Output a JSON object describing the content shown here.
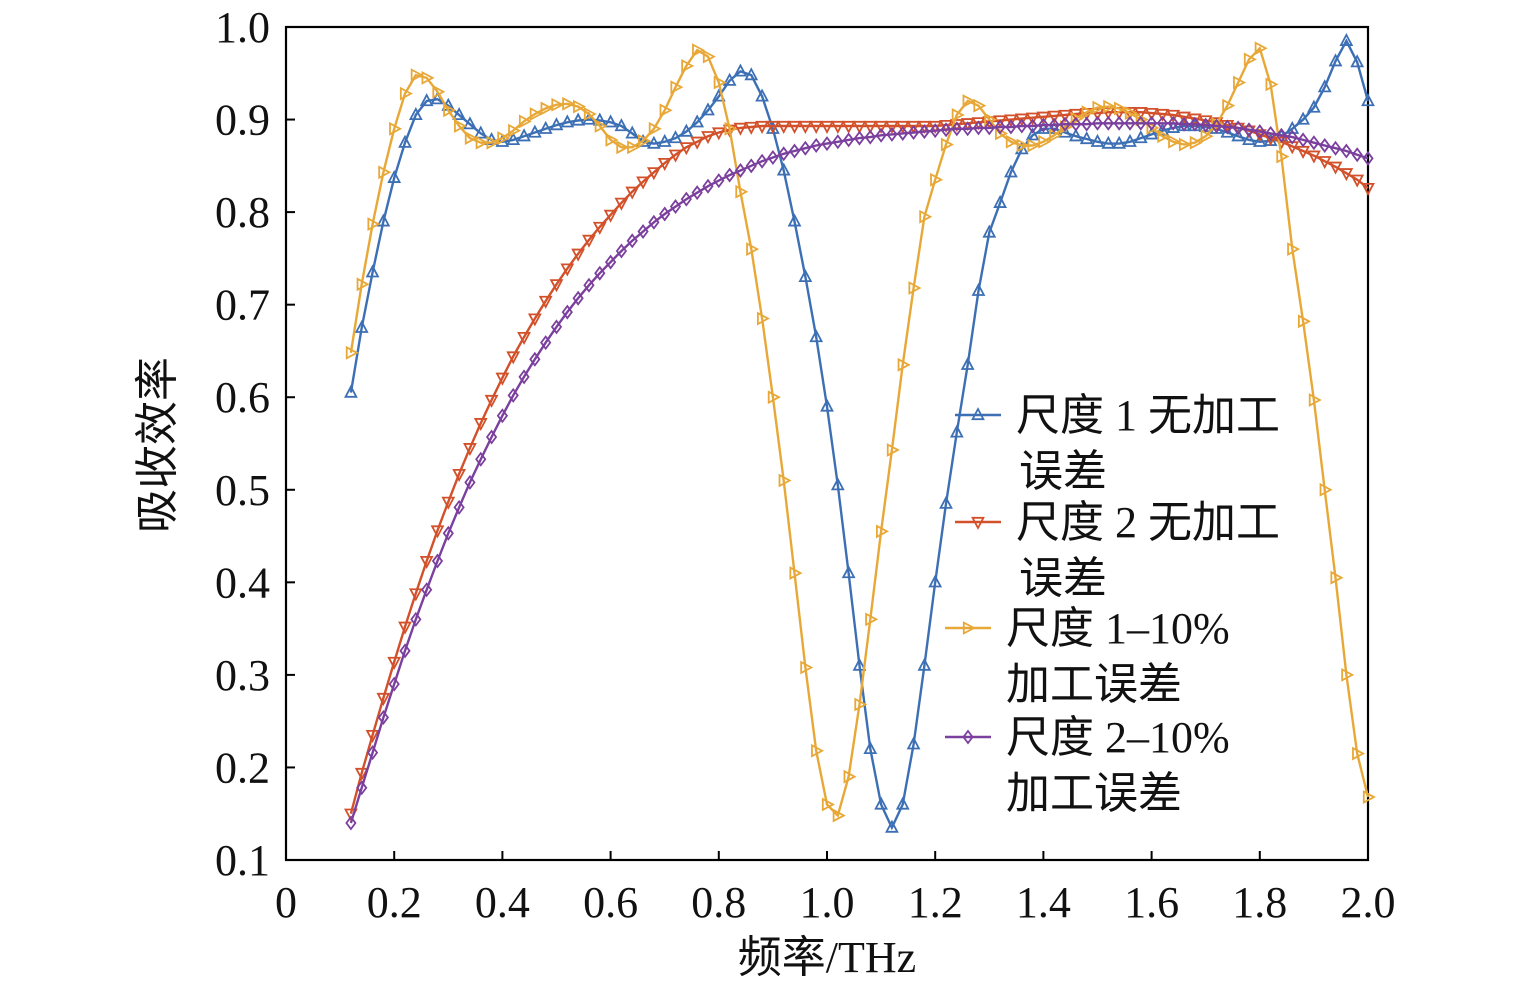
{
  "chart_data": {
    "type": "line",
    "title": "",
    "xlabel": "频率/THz",
    "ylabel": "吸收效率",
    "xlim": [
      0,
      2.0
    ],
    "ylim": [
      0.1,
      1.0
    ],
    "xticks": [
      "0",
      "0.2",
      "0.4",
      "0.6",
      "0.8",
      "1.0",
      "1.2",
      "1.4",
      "1.6",
      "1.8",
      "2.0"
    ],
    "yticks": [
      "0.1",
      "0.2",
      "0.3",
      "0.4",
      "0.5",
      "0.6",
      "0.7",
      "0.8",
      "0.9",
      "1.0"
    ],
    "grid": false,
    "legend_position": "center-right",
    "series": [
      {
        "name": "尺度 1 无加工误差",
        "legend_lines": [
          "尺度 1 无加工",
          "误差"
        ],
        "color": "#3c6fb4",
        "marker": "triangle-up",
        "x": [
          0.12,
          0.14,
          0.16,
          0.18,
          0.2,
          0.22,
          0.24,
          0.26,
          0.28,
          0.3,
          0.32,
          0.34,
          0.36,
          0.38,
          0.4,
          0.42,
          0.44,
          0.46,
          0.48,
          0.5,
          0.52,
          0.54,
          0.56,
          0.58,
          0.6,
          0.62,
          0.64,
          0.66,
          0.68,
          0.7,
          0.72,
          0.74,
          0.76,
          0.78,
          0.8,
          0.82,
          0.84,
          0.86,
          0.88,
          0.9,
          0.92,
          0.94,
          0.96,
          0.98,
          1.0,
          1.02,
          1.04,
          1.06,
          1.08,
          1.1,
          1.12,
          1.14,
          1.16,
          1.18,
          1.2,
          1.22,
          1.24,
          1.26,
          1.28,
          1.3,
          1.32,
          1.34,
          1.36,
          1.38,
          1.4,
          1.42,
          1.44,
          1.46,
          1.48,
          1.5,
          1.52,
          1.54,
          1.56,
          1.58,
          1.6,
          1.62,
          1.64,
          1.66,
          1.68,
          1.7,
          1.72,
          1.74,
          1.76,
          1.78,
          1.8,
          1.82,
          1.84,
          1.86,
          1.88,
          1.9,
          1.92,
          1.94,
          1.96,
          1.98,
          2.0
        ],
        "y": [
          0.605,
          0.675,
          0.735,
          0.79,
          0.837,
          0.875,
          0.905,
          0.92,
          0.922,
          0.915,
          0.905,
          0.895,
          0.885,
          0.878,
          0.876,
          0.878,
          0.882,
          0.886,
          0.89,
          0.894,
          0.897,
          0.899,
          0.9,
          0.899,
          0.897,
          0.893,
          0.885,
          0.876,
          0.874,
          0.876,
          0.88,
          0.887,
          0.897,
          0.91,
          0.925,
          0.942,
          0.952,
          0.948,
          0.925,
          0.89,
          0.845,
          0.79,
          0.73,
          0.665,
          0.59,
          0.505,
          0.41,
          0.31,
          0.22,
          0.16,
          0.135,
          0.16,
          0.225,
          0.31,
          0.4,
          0.485,
          0.562,
          0.635,
          0.715,
          0.778,
          0.81,
          0.843,
          0.868,
          0.883,
          0.89,
          0.89,
          0.886,
          0.882,
          0.879,
          0.876,
          0.874,
          0.874,
          0.876,
          0.88,
          0.884,
          0.888,
          0.891,
          0.893,
          0.893,
          0.892,
          0.89,
          0.886,
          0.882,
          0.878,
          0.876,
          0.877,
          0.882,
          0.89,
          0.9,
          0.913,
          0.935,
          0.963,
          0.985,
          0.962,
          0.92
        ]
      },
      {
        "name": "尺度 2 无加工误差",
        "legend_lines": [
          "尺度 2 无加工",
          "误差"
        ],
        "color": "#d2502a",
        "marker": "triangle-down",
        "x": [
          0.12,
          0.14,
          0.16,
          0.18,
          0.2,
          0.22,
          0.24,
          0.26,
          0.28,
          0.3,
          0.32,
          0.34,
          0.36,
          0.38,
          0.4,
          0.42,
          0.44,
          0.46,
          0.48,
          0.5,
          0.52,
          0.54,
          0.56,
          0.58,
          0.6,
          0.62,
          0.64,
          0.66,
          0.68,
          0.7,
          0.72,
          0.74,
          0.76,
          0.78,
          0.8,
          0.82,
          0.84,
          0.86,
          0.88,
          0.9,
          0.92,
          0.94,
          0.96,
          0.98,
          1.0,
          1.02,
          1.04,
          1.06,
          1.08,
          1.1,
          1.12,
          1.14,
          1.16,
          1.18,
          1.2,
          1.22,
          1.24,
          1.26,
          1.28,
          1.3,
          1.32,
          1.34,
          1.36,
          1.38,
          1.4,
          1.42,
          1.44,
          1.46,
          1.48,
          1.5,
          1.52,
          1.54,
          1.56,
          1.58,
          1.6,
          1.62,
          1.64,
          1.66,
          1.68,
          1.7,
          1.72,
          1.74,
          1.76,
          1.78,
          1.8,
          1.82,
          1.84,
          1.86,
          1.88,
          1.9,
          1.92,
          1.94,
          1.96,
          1.98,
          2.0
        ],
        "y": [
          0.15,
          0.194,
          0.235,
          0.275,
          0.314,
          0.352,
          0.388,
          0.423,
          0.456,
          0.487,
          0.517,
          0.545,
          0.572,
          0.597,
          0.621,
          0.644,
          0.665,
          0.685,
          0.704,
          0.722,
          0.739,
          0.755,
          0.77,
          0.784,
          0.797,
          0.81,
          0.822,
          0.833,
          0.843,
          0.853,
          0.862,
          0.87,
          0.876,
          0.882,
          0.886,
          0.889,
          0.891,
          0.892,
          0.893,
          0.893,
          0.893,
          0.893,
          0.893,
          0.893,
          0.893,
          0.893,
          0.893,
          0.893,
          0.893,
          0.893,
          0.893,
          0.893,
          0.893,
          0.893,
          0.893,
          0.894,
          0.895,
          0.896,
          0.897,
          0.898,
          0.899,
          0.9,
          0.901,
          0.902,
          0.903,
          0.904,
          0.905,
          0.906,
          0.907,
          0.907,
          0.908,
          0.908,
          0.908,
          0.908,
          0.907,
          0.906,
          0.905,
          0.903,
          0.901,
          0.899,
          0.897,
          0.894,
          0.891,
          0.888,
          0.884,
          0.88,
          0.876,
          0.871,
          0.866,
          0.861,
          0.855,
          0.849,
          0.842,
          0.835,
          0.826
        ]
      },
      {
        "name": "尺度 1–10% 加工误差",
        "legend_lines": [
          "尺度 1–10%",
          "加工误差"
        ],
        "color": "#e8a838",
        "marker": "triangle-right",
        "x": [
          0.12,
          0.14,
          0.16,
          0.18,
          0.2,
          0.22,
          0.24,
          0.26,
          0.28,
          0.3,
          0.32,
          0.34,
          0.36,
          0.38,
          0.4,
          0.42,
          0.44,
          0.46,
          0.48,
          0.5,
          0.52,
          0.54,
          0.56,
          0.58,
          0.6,
          0.62,
          0.64,
          0.66,
          0.68,
          0.7,
          0.72,
          0.74,
          0.76,
          0.78,
          0.8,
          0.82,
          0.84,
          0.86,
          0.88,
          0.9,
          0.92,
          0.94,
          0.96,
          0.98,
          1.0,
          1.02,
          1.04,
          1.06,
          1.08,
          1.1,
          1.12,
          1.14,
          1.16,
          1.18,
          1.2,
          1.22,
          1.24,
          1.26,
          1.28,
          1.3,
          1.32,
          1.34,
          1.36,
          1.38,
          1.4,
          1.42,
          1.44,
          1.46,
          1.48,
          1.5,
          1.52,
          1.54,
          1.56,
          1.58,
          1.6,
          1.62,
          1.64,
          1.66,
          1.68,
          1.7,
          1.72,
          1.74,
          1.76,
          1.78,
          1.8,
          1.82,
          1.84,
          1.86,
          1.88,
          1.9,
          1.92,
          1.94,
          1.96,
          1.98,
          2.0
        ],
        "y": [
          0.648,
          0.722,
          0.787,
          0.843,
          0.89,
          0.928,
          0.948,
          0.945,
          0.93,
          0.91,
          0.893,
          0.88,
          0.875,
          0.875,
          0.88,
          0.888,
          0.898,
          0.906,
          0.912,
          0.916,
          0.917,
          0.914,
          0.906,
          0.893,
          0.878,
          0.87,
          0.87,
          0.877,
          0.89,
          0.91,
          0.935,
          0.958,
          0.975,
          0.968,
          0.94,
          0.89,
          0.822,
          0.76,
          0.685,
          0.6,
          0.51,
          0.41,
          0.308,
          0.218,
          0.16,
          0.148,
          0.19,
          0.268,
          0.36,
          0.455,
          0.543,
          0.635,
          0.718,
          0.795,
          0.835,
          0.873,
          0.905,
          0.92,
          0.915,
          0.9,
          0.885,
          0.876,
          0.872,
          0.872,
          0.876,
          0.883,
          0.892,
          0.901,
          0.908,
          0.913,
          0.914,
          0.912,
          0.907,
          0.9,
          0.891,
          0.882,
          0.876,
          0.873,
          0.875,
          0.882,
          0.895,
          0.915,
          0.94,
          0.965,
          0.977,
          0.938,
          0.86,
          0.76,
          0.682,
          0.597,
          0.5,
          0.405,
          0.3,
          0.215,
          0.168
        ]
      },
      {
        "name": "尺度 2–10% 加工误差",
        "legend_lines": [
          "尺度 2–10%",
          "加工误差"
        ],
        "color": "#7b3f9e",
        "marker": "diamond",
        "x": [
          0.12,
          0.14,
          0.16,
          0.18,
          0.2,
          0.22,
          0.24,
          0.26,
          0.28,
          0.3,
          0.32,
          0.34,
          0.36,
          0.38,
          0.4,
          0.42,
          0.44,
          0.46,
          0.48,
          0.5,
          0.52,
          0.54,
          0.56,
          0.58,
          0.6,
          0.62,
          0.64,
          0.66,
          0.68,
          0.7,
          0.72,
          0.74,
          0.76,
          0.78,
          0.8,
          0.82,
          0.84,
          0.86,
          0.88,
          0.9,
          0.92,
          0.94,
          0.96,
          0.98,
          1.0,
          1.02,
          1.04,
          1.06,
          1.08,
          1.1,
          1.12,
          1.14,
          1.16,
          1.18,
          1.2,
          1.22,
          1.24,
          1.26,
          1.28,
          1.3,
          1.32,
          1.34,
          1.36,
          1.38,
          1.4,
          1.42,
          1.44,
          1.46,
          1.48,
          1.5,
          1.52,
          1.54,
          1.56,
          1.58,
          1.6,
          1.62,
          1.64,
          1.66,
          1.68,
          1.7,
          1.72,
          1.74,
          1.76,
          1.78,
          1.8,
          1.82,
          1.84,
          1.86,
          1.88,
          1.9,
          1.92,
          1.94,
          1.96,
          1.98,
          2.0
        ],
        "y": [
          0.14,
          0.178,
          0.216,
          0.254,
          0.29,
          0.326,
          0.36,
          0.392,
          0.423,
          0.453,
          0.481,
          0.508,
          0.533,
          0.557,
          0.58,
          0.602,
          0.622,
          0.641,
          0.659,
          0.676,
          0.692,
          0.707,
          0.721,
          0.734,
          0.746,
          0.758,
          0.769,
          0.779,
          0.789,
          0.798,
          0.806,
          0.814,
          0.821,
          0.828,
          0.834,
          0.84,
          0.845,
          0.85,
          0.855,
          0.859,
          0.863,
          0.866,
          0.869,
          0.872,
          0.874,
          0.876,
          0.878,
          0.88,
          0.881,
          0.883,
          0.884,
          0.885,
          0.886,
          0.887,
          0.888,
          0.889,
          0.89,
          0.89,
          0.891,
          0.891,
          0.892,
          0.892,
          0.893,
          0.893,
          0.894,
          0.894,
          0.895,
          0.895,
          0.895,
          0.896,
          0.896,
          0.896,
          0.896,
          0.896,
          0.896,
          0.896,
          0.896,
          0.895,
          0.895,
          0.894,
          0.893,
          0.892,
          0.891,
          0.889,
          0.887,
          0.885,
          0.883,
          0.881,
          0.878,
          0.875,
          0.872,
          0.869,
          0.866,
          0.862,
          0.858
        ]
      }
    ]
  }
}
